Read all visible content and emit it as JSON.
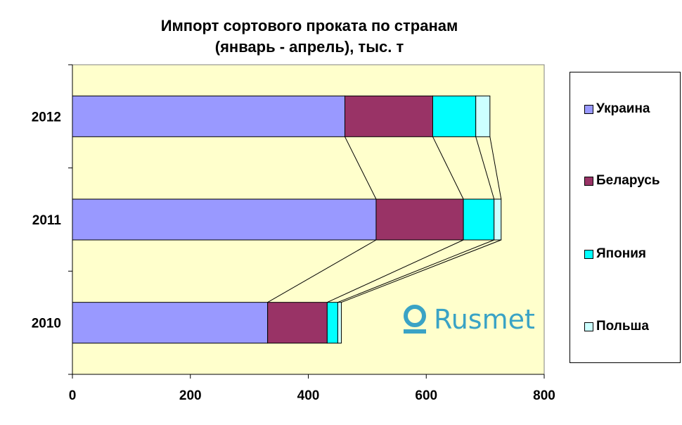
{
  "chart_data": {
    "type": "bar",
    "orientation": "horizontal",
    "stacked": true,
    "title_line1": "Импорт сортового проката по странам",
    "title_line2": "(январь - апрель), тыс. т",
    "categories": [
      "2012",
      "2011",
      "2010"
    ],
    "series": [
      {
        "name": "Украина",
        "color": "#9999ff",
        "values": [
          462,
          515,
          331
        ]
      },
      {
        "name": "Беларусь",
        "color": "#993366",
        "values": [
          149,
          148,
          101
        ]
      },
      {
        "name": "Япония",
        "color": "#00ffff",
        "values": [
          73,
          52,
          18
        ]
      },
      {
        "name": "Польша",
        "color": "#ccffff",
        "values": [
          24,
          12,
          6
        ]
      }
    ],
    "xlim": [
      0,
      800
    ],
    "xticks": [
      "0",
      "200",
      "400",
      "600",
      "800"
    ],
    "series_lines": true,
    "legend_position": "right",
    "plot_background": "#ffffcc"
  },
  "watermark": {
    "text": "Rusmet",
    "color": "#3aa3c5"
  }
}
